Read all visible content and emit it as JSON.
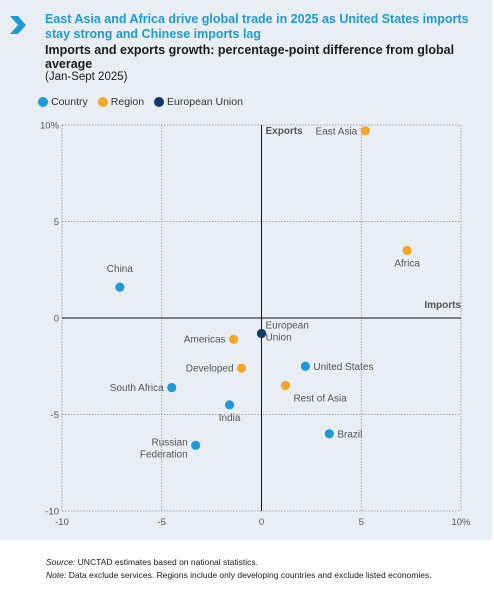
{
  "header": {
    "title": "East Asia and Africa drive global trade in 2025 as United States imports stay strong and Chinese imports lag",
    "subtitle": "Imports and exports growth: percentage-point difference from global average",
    "period": "(Jan-Sept 2025)"
  },
  "legend": {
    "items": [
      {
        "label": "Country",
        "color": "#1e9bd7"
      },
      {
        "label": "Region",
        "color": "#f5a623"
      },
      {
        "label": "European Union",
        "color": "#123b6b"
      }
    ]
  },
  "footer": {
    "source_label": "Source:",
    "source_text": "UNCTAD estimates based on national statistics.",
    "note_label": "Note:",
    "note_text": "Data exclude services. Regions include only developing countries and exclude listed economies."
  },
  "chart_data": {
    "type": "scatter",
    "xlabel": "Imports",
    "ylabel": "Exports",
    "xlim": [
      -10,
      10
    ],
    "ylim": [
      -10,
      10
    ],
    "x_ticks": [
      {
        "value": -10,
        "label": "-10"
      },
      {
        "value": -5,
        "label": "-5"
      },
      {
        "value": 0,
        "label": "0"
      },
      {
        "value": 5,
        "label": "5"
      },
      {
        "value": 10,
        "label": "10%"
      }
    ],
    "y_ticks": [
      {
        "value": 10,
        "label": "10%"
      },
      {
        "value": 5,
        "label": "5"
      },
      {
        "value": 0,
        "label": "0"
      },
      {
        "value": -5,
        "label": "-5"
      },
      {
        "value": -10,
        "label": "-10"
      }
    ],
    "grid": true,
    "legend_position": "top-left",
    "colors": {
      "Country": "#1e9bd7",
      "Region": "#f5a623",
      "European Union": "#123b6b"
    },
    "points": [
      {
        "name": "East Asia",
        "category": "Region",
        "x": 5.2,
        "y": 9.7,
        "label_pos": "left"
      },
      {
        "name": "Africa",
        "category": "Region",
        "x": 7.3,
        "y": 3.5,
        "label_pos": "below"
      },
      {
        "name": "China",
        "category": "Country",
        "x": -7.1,
        "y": 1.6,
        "label_pos": "above"
      },
      {
        "name": "Americas",
        "category": "Region",
        "x": -1.4,
        "y": -1.1,
        "label_pos": "left"
      },
      {
        "name": "European Union",
        "category": "European Union",
        "x": 0.0,
        "y": -0.8,
        "label_pos": "right-two"
      },
      {
        "name": "Developed",
        "category": "Region",
        "x": -1.0,
        "y": -2.6,
        "label_pos": "left"
      },
      {
        "name": "United States",
        "category": "Country",
        "x": 2.2,
        "y": -2.5,
        "label_pos": "right"
      },
      {
        "name": "Rest of Asia",
        "category": "Region",
        "x": 1.2,
        "y": -3.5,
        "label_pos": "below-right"
      },
      {
        "name": "South Africa",
        "category": "Country",
        "x": -4.5,
        "y": -3.6,
        "label_pos": "left"
      },
      {
        "name": "India",
        "category": "Country",
        "x": -1.6,
        "y": -4.5,
        "label_pos": "below"
      },
      {
        "name": "Brazil",
        "category": "Country",
        "x": 3.4,
        "y": -6.0,
        "label_pos": "right"
      },
      {
        "name": "Russian Federation",
        "category": "Country",
        "x": -3.3,
        "y": -6.6,
        "label_pos": "left-two"
      }
    ]
  }
}
